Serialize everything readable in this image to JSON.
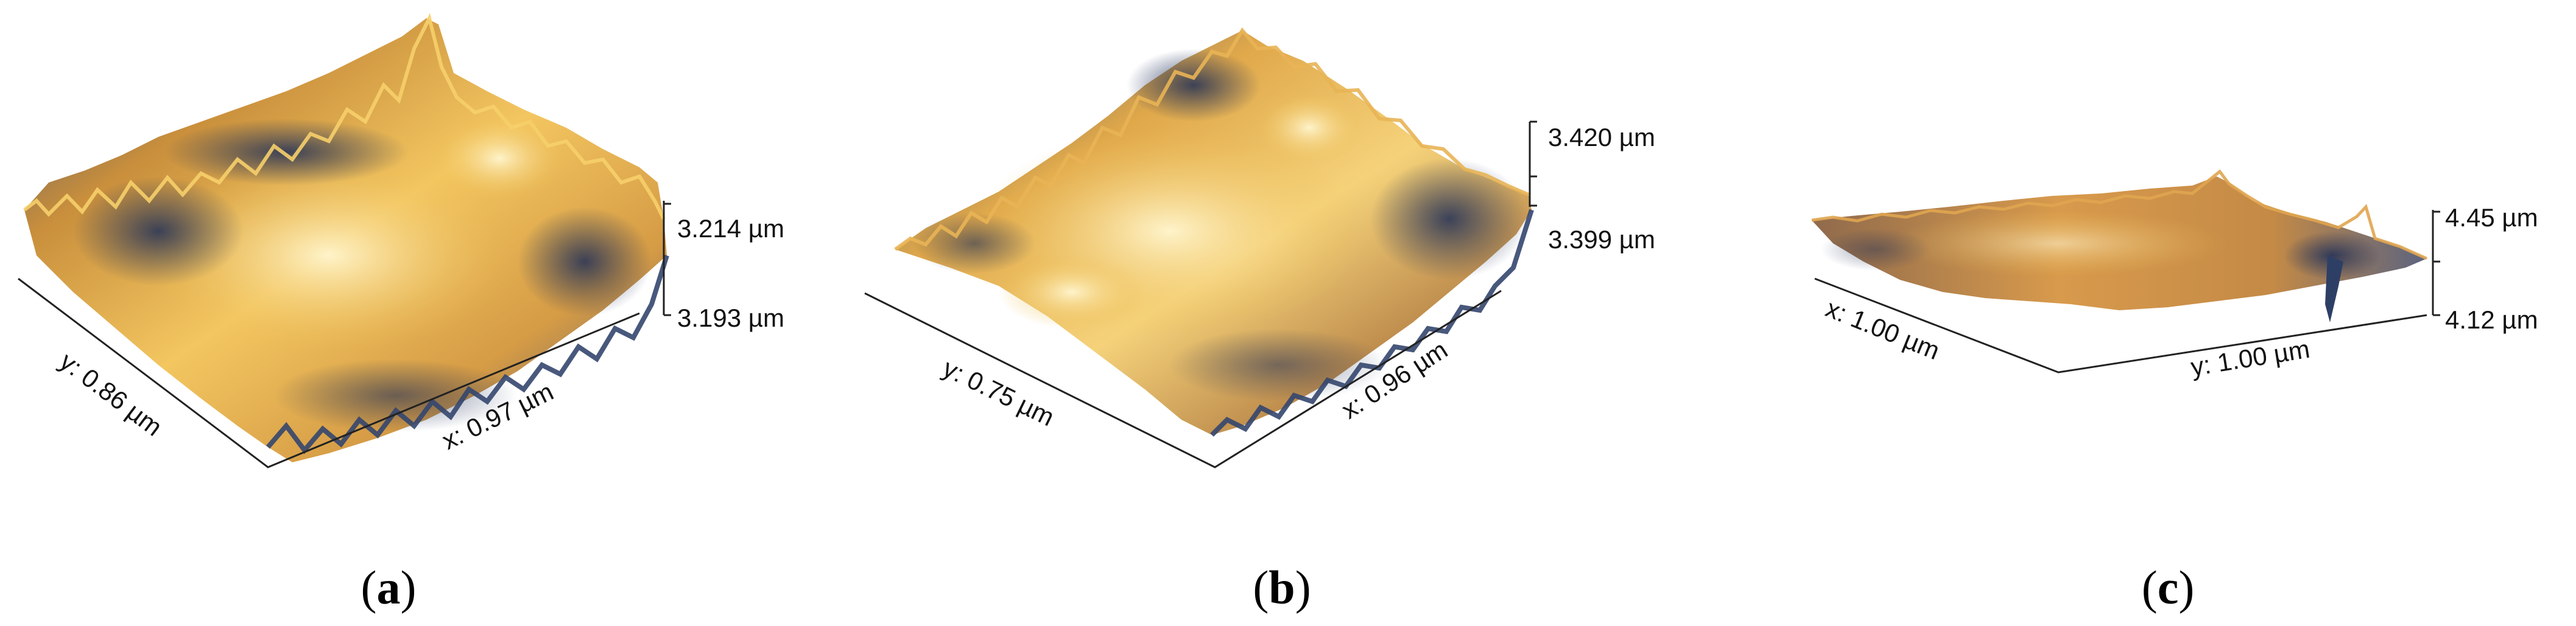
{
  "panels": [
    {
      "id": "a",
      "caption_open": "(",
      "caption_letter": "a",
      "caption_close": ")",
      "x_label": "x: 0.97 µm",
      "y_label": "y: 0.86 µm",
      "z_top": "3.214 µm",
      "z_bottom": "3.193 µm"
    },
    {
      "id": "b",
      "caption_open": "(",
      "caption_letter": "b",
      "caption_close": ")",
      "x_label": "x: 0.96 µm",
      "y_label": "y: 0.75 µm",
      "z_top": "3.420 µm",
      "z_bottom": "3.399 µm"
    },
    {
      "id": "c",
      "caption_open": "(",
      "caption_letter": "c",
      "caption_close": ")",
      "x_label": "x: 1.00 µm",
      "y_label": "y: 1.00 µm",
      "z_top": "4.45 µm",
      "z_bottom": "4.12 µm"
    }
  ],
  "colors": {
    "peak": "#fff4c8",
    "high": "#f0c050",
    "mid": "#d69a3e",
    "low": "#8a7460",
    "valley": "#2a3d66"
  }
}
